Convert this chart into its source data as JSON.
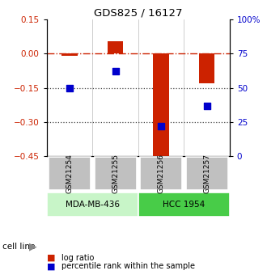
{
  "title": "GDS825 / 16127",
  "samples": [
    "GSM21254",
    "GSM21255",
    "GSM21256",
    "GSM21257"
  ],
  "log_ratio": [
    -0.01,
    0.055,
    -0.46,
    -0.13
  ],
  "percentile_rank": [
    50,
    62,
    22,
    37
  ],
  "left_ylim": [
    -0.45,
    0.15
  ],
  "right_ylim": [
    0,
    100
  ],
  "left_yticks": [
    0.15,
    0,
    -0.15,
    -0.3,
    -0.45
  ],
  "right_yticks": [
    100,
    75,
    50,
    25,
    0
  ],
  "right_yticklabels": [
    "100%",
    "75",
    "50",
    "25",
    "0"
  ],
  "cell_lines": [
    {
      "label": "MDA-MB-436",
      "samples": [
        0,
        1
      ],
      "color": "#c8f5c8"
    },
    {
      "label": "HCC 1954",
      "samples": [
        2,
        3
      ],
      "color": "#48cc48"
    }
  ],
  "bar_color": "#cc2200",
  "dot_color": "#0000cc",
  "dashed_line_color": "#cc2200",
  "dotted_line_color": "#444444",
  "bg_color": "#ffffff",
  "tick_label_color_left": "#cc2200",
  "tick_label_color_right": "#0000cc",
  "sample_box_color": "#c0c0c0",
  "bar_width": 0.35,
  "legend_items": [
    {
      "color": "#cc2200",
      "label": "log ratio"
    },
    {
      "color": "#0000cc",
      "label": "percentile rank within the sample"
    }
  ]
}
